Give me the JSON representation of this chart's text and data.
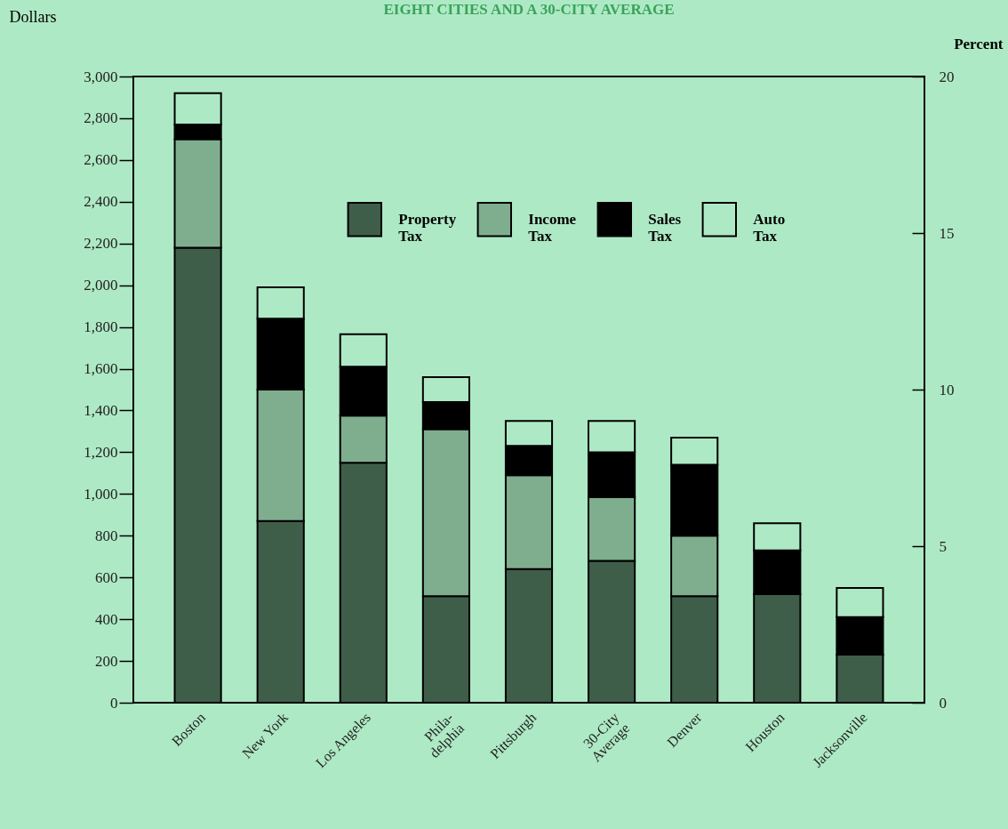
{
  "chart_data": {
    "type": "bar",
    "title": "EIGHT CITIES AND A 30-CITY AVERAGE",
    "ylabel": "Dollars",
    "y2label": "Percent",
    "categories": [
      "Boston",
      "New York",
      "Los Angeles",
      "Phila-\ndelphia",
      "Pittsburgh",
      "30-City\nAverage",
      "Denver",
      "Houston",
      "Jacksonville"
    ],
    "stacked": true,
    "series": [
      {
        "name": "Property Tax",
        "color": "#3f5e4a",
        "values": [
          2180,
          870,
          1150,
          510,
          640,
          680,
          510,
          520,
          230
        ]
      },
      {
        "name": "Income Tax",
        "color": "#7fae8f",
        "values": [
          520,
          630,
          225,
          800,
          450,
          305,
          290,
          0,
          0
        ]
      },
      {
        "name": "Sales Tax",
        "color": "#000000",
        "values": [
          70,
          340,
          235,
          130,
          140,
          215,
          340,
          210,
          180
        ]
      },
      {
        "name": "Auto Tax",
        "color": "#aee9c5",
        "values": [
          150,
          150,
          155,
          120,
          120,
          150,
          130,
          130,
          140
        ]
      }
    ],
    "ylim": [
      0,
      3000
    ],
    "yticks": [
      0,
      200,
      400,
      600,
      800,
      {
        "value": 1000,
        "label": "1,000"
      },
      {
        "value": 1200,
        "label": "1,200"
      },
      {
        "value": 1400,
        "label": "1,400"
      },
      {
        "value": 1600,
        "label": "1,600"
      },
      {
        "value": 1800,
        "label": "1,800"
      },
      {
        "value": 2000,
        "label": "2,000"
      },
      {
        "value": 2200,
        "label": "2,200"
      },
      {
        "value": 2400,
        "label": "2,400"
      },
      {
        "value": 2600,
        "label": "2,600"
      },
      {
        "value": 2800,
        "label": "2,800"
      },
      {
        "value": 3000,
        "label": "3,000"
      }
    ],
    "y2lim": [
      0,
      20
    ],
    "y2ticks": [
      0,
      5,
      10,
      15,
      20
    ],
    "legend": "top",
    "grid": false
  }
}
